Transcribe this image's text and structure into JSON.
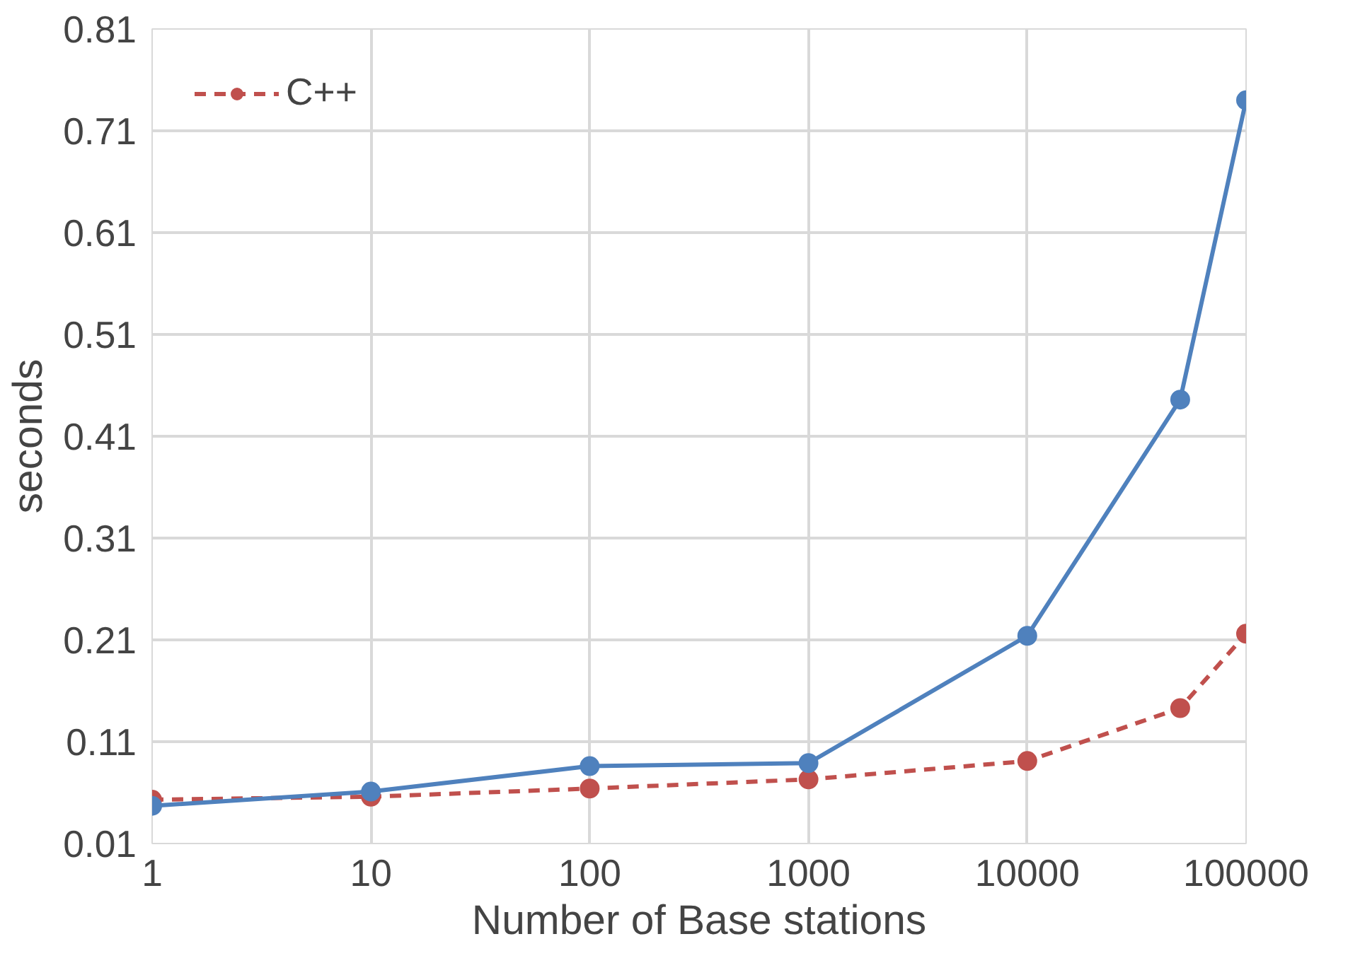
{
  "chart_data": {
    "type": "line",
    "xlabel": "Number of Base stations",
    "ylabel": "seconds",
    "x": [
      1,
      10,
      100,
      1000,
      10000,
      50000,
      100000
    ],
    "series": [
      {
        "color": "#4f81bd",
        "values": [
          0.047,
          0.061,
          0.086,
          0.089,
          0.214,
          0.446,
          0.74
        ],
        "line_style": "solid"
      },
      {
        "name": "C++",
        "color": "#c0504d",
        "values": [
          0.053,
          0.056,
          0.064,
          0.073,
          0.091,
          0.143,
          0.216
        ],
        "line_style": "dashed"
      }
    ],
    "log": "x",
    "xlim": [
      1,
      100000
    ],
    "xticks": [
      1,
      10,
      100,
      1000,
      10000,
      100000
    ],
    "ylim": [
      0.01,
      0.81
    ],
    "yticks": [
      0.01,
      0.11,
      0.21,
      0.31,
      0.41,
      0.51,
      0.61,
      0.71,
      0.81
    ],
    "grid": true,
    "marker": "circle",
    "legend": "top left"
  }
}
